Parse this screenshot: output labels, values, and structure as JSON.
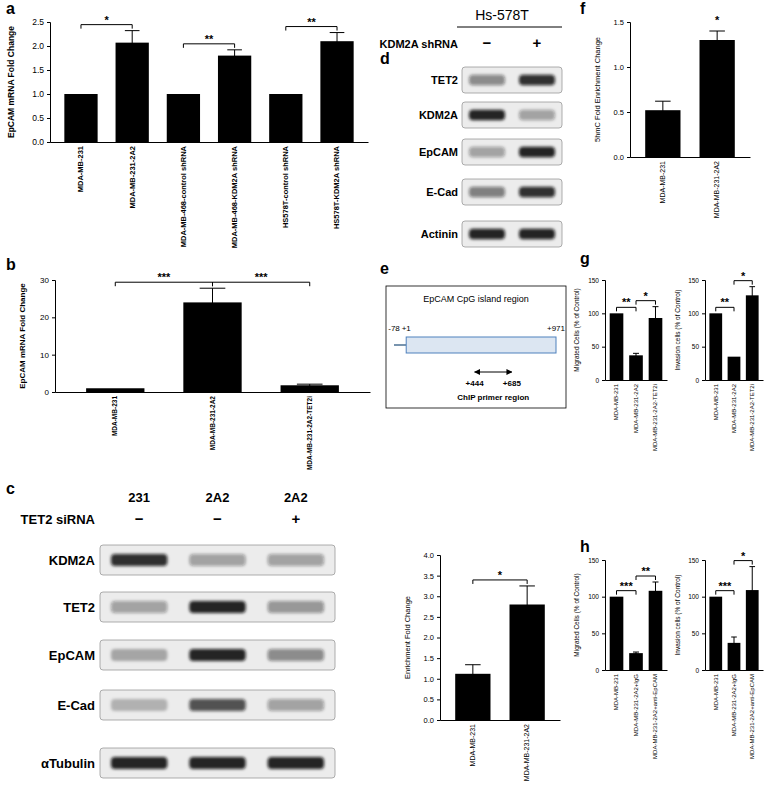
{
  "chart_data": [
    {
      "type": "bar",
      "ylabel": "EpCAM mRNA Fold Change",
      "categories": [
        "MDA-MB-231",
        "MDA-MB-231-2A2",
        "MDA-MB-468-control shRNA",
        "MDA-MB-468-KDM2A shRNA",
        "HS578T-control shRNA",
        "HS578T-KDM2A shRNA"
      ],
      "values": [
        1,
        2.07,
        1,
        1.8,
        1,
        2.1
      ],
      "errors": [
        0,
        0.25,
        0,
        0.12,
        0,
        0.18
      ],
      "color": "#000000",
      "ylim": [
        0,
        2.5
      ],
      "yticks": [
        {
          "value": 0,
          "label": "0.0"
        },
        {
          "value": 0.5,
          "label": "0.5"
        },
        {
          "value": 1,
          "label": "1.0"
        },
        {
          "value": 1.5,
          "label": "1.5"
        },
        {
          "value": 2,
          "label": "2.0"
        },
        {
          "value": 2.5,
          "label": "2.5"
        }
      ],
      "annotations": [
        {
          "text": "*",
          "from": 0,
          "to": 1
        },
        {
          "text": "**",
          "from": 2,
          "to": 3
        },
        {
          "text": "**",
          "from": 4,
          "to": 5
        }
      ]
    },
    {
      "type": "bar",
      "ylabel": "EpCAM mRNA Fold Change",
      "categories": [
        "MDA-MB-231",
        "MDA-MB-231-2A2",
        "MDA-MB-231-2A2-TET2i"
      ],
      "values": [
        1,
        24,
        1.8
      ],
      "errors": [
        0,
        3.8,
        0.3
      ],
      "color": "#000000",
      "ylim": [
        0,
        30
      ],
      "yticks": [
        0,
        10,
        20,
        30
      ],
      "annotations": [
        {
          "text": "***",
          "from": 0,
          "to": 1
        },
        {
          "text": "***",
          "from": 1,
          "to": 2
        }
      ]
    },
    {
      "type": "bar",
      "ylabel": "Enrichment Fold Change",
      "categories": [
        "MDA-MB-231",
        "MDA-MB-231-2A2"
      ],
      "values": [
        1.12,
        2.8
      ],
      "errors": [
        0.22,
        0.45
      ],
      "color": "#000000",
      "ylim": [
        0,
        4
      ],
      "yticks": [
        {
          "value": 0,
          "label": "0.0"
        },
        {
          "value": 0.5,
          "label": "0.5"
        },
        {
          "value": 1,
          "label": "1.0"
        },
        {
          "value": 1.5,
          "label": "1.5"
        },
        {
          "value": 2,
          "label": "2.0"
        },
        {
          "value": 2.5,
          "label": "2.5"
        },
        {
          "value": 3,
          "label": "3.0"
        },
        {
          "value": 3.5,
          "label": "3.5"
        },
        {
          "value": 4,
          "label": "4.0"
        }
      ],
      "annotations": [
        {
          "text": "*",
          "from": 0,
          "to": 1
        }
      ]
    },
    {
      "type": "bar",
      "ylabel": "5hmC Fold Enrichment Change",
      "categories": [
        "MDA-MB-231",
        "MDA-MB-231-2A2"
      ],
      "values": [
        0.52,
        1.3
      ],
      "errors": [
        0.1,
        0.1
      ],
      "color": "#000000",
      "ylim": [
        0,
        1.5
      ],
      "yticks": [
        {
          "value": 0,
          "label": "0.0"
        },
        {
          "value": 0.5,
          "label": "0.5"
        },
        {
          "value": 1,
          "label": "1.0"
        },
        {
          "value": 1.5,
          "label": "1.5"
        }
      ],
      "annotations": [
        {
          "text": "*",
          "from": 1,
          "to": 1
        }
      ]
    },
    {
      "type": "bar",
      "ylabel": "Migrated Cells (% of Control)",
      "categories": [
        "MDA-MB-231",
        "MDA-MB-231-2A2",
        "MDA-MB-231-2A2-TET2i"
      ],
      "values": [
        100,
        37,
        93
      ],
      "errors": [
        0,
        3,
        17
      ],
      "color": "#000000",
      "ylim": [
        0,
        150
      ],
      "yticks": [
        0,
        50,
        100,
        150
      ],
      "annotations": [
        {
          "text": "**",
          "from": 0,
          "to": 1
        },
        {
          "text": "*",
          "from": 1,
          "to": 2
        }
      ]
    },
    {
      "type": "bar",
      "ylabel": "Invasion cells (% of Control)",
      "categories": [
        "MDA-MB-231",
        "MDA-MB-231-2A2",
        "MDA-MB-231-2A2-TET2i"
      ],
      "values": [
        100,
        35,
        127
      ],
      "errors": [
        0,
        0,
        13
      ],
      "color": "#000000",
      "ylim": [
        0,
        150
      ],
      "yticks": [
        0,
        50,
        100,
        150
      ],
      "annotations": [
        {
          "text": "**",
          "from": 0,
          "to": 1
        },
        {
          "text": "*",
          "from": 1,
          "to": 2
        }
      ]
    },
    {
      "type": "bar",
      "ylabel": "Migrated Cells (% of Control)",
      "categories": [
        "MDA-MB-231",
        "MDA-MB-231-2A2+IgG",
        "MDA-MB-231-2A2+anti-EpCAM"
      ],
      "values": [
        100,
        23,
        108
      ],
      "errors": [
        0,
        1.5,
        12
      ],
      "color": "#000000",
      "ylim": [
        0,
        150
      ],
      "yticks": [
        0,
        50,
        100,
        150
      ],
      "annotations": [
        {
          "text": "***",
          "from": 0,
          "to": 1
        },
        {
          "text": "**",
          "from": 1,
          "to": 2
        }
      ]
    },
    {
      "type": "bar",
      "ylabel": "Invasion cells (% of Control)",
      "categories": [
        "MDA-MB-231",
        "MDA-MB-231-2A2+IgG",
        "MDA-MB-231-2A2+anti-EpCAM"
      ],
      "values": [
        100,
        37,
        109
      ],
      "errors": [
        0,
        8,
        32
      ],
      "color": "#000000",
      "ylim": [
        0,
        150
      ],
      "yticks": [
        0,
        50,
        100,
        150
      ],
      "annotations": [
        {
          "text": "***",
          "from": 0,
          "to": 1
        },
        {
          "text": "*",
          "from": 1,
          "to": 2
        }
      ]
    }
  ],
  "panel_labels": [
    "a",
    "b",
    "c",
    "d",
    "e",
    "f",
    "g",
    "h"
  ],
  "blots": [
    {
      "columns": [
        "231",
        "2A2",
        "2A2"
      ],
      "treatment": {
        "label": "TET2 siRNA",
        "values": [
          "−",
          "−",
          "+"
        ]
      },
      "rows": [
        {
          "label": "KDM2A",
          "bands": [
            0.85,
            0.35,
            0.35
          ]
        },
        {
          "label": "TET2",
          "bands": [
            0.35,
            0.9,
            0.4
          ]
        },
        {
          "label": "EpCAM",
          "bands": [
            0.3,
            0.9,
            0.45
          ]
        },
        {
          "label": "E-Cad",
          "bands": [
            0.25,
            0.7,
            0.35
          ]
        },
        {
          "label": "αTubulin",
          "bands": [
            0.9,
            0.9,
            0.9
          ]
        }
      ]
    },
    {
      "title": "Hs-578T",
      "treatment": {
        "label": "KDM2A shRNA",
        "values": [
          "−",
          "+"
        ]
      },
      "rows": [
        {
          "label": "TET2",
          "bands": [
            0.45,
            0.85
          ]
        },
        {
          "label": "KDM2A",
          "bands": [
            0.9,
            0.35
          ]
        },
        {
          "label": "EpCAM",
          "bands": [
            0.35,
            0.9
          ]
        },
        {
          "label": "E-Cad",
          "bands": [
            0.5,
            0.85
          ]
        },
        {
          "label": "Actinin",
          "bands": [
            0.9,
            0.9
          ]
        }
      ]
    }
  ],
  "diagram": {
    "title": "EpCAM CpG island region",
    "positions": [
      {
        "value": -78,
        "label": "-78"
      },
      {
        "value": 1,
        "label": "+1"
      },
      {
        "value": 971,
        "label": "+971"
      }
    ],
    "primer": {
      "start": {
        "value": 444,
        "label": "+444"
      },
      "end": {
        "value": 685,
        "label": "+685"
      },
      "label": "ChIP primer region"
    }
  }
}
